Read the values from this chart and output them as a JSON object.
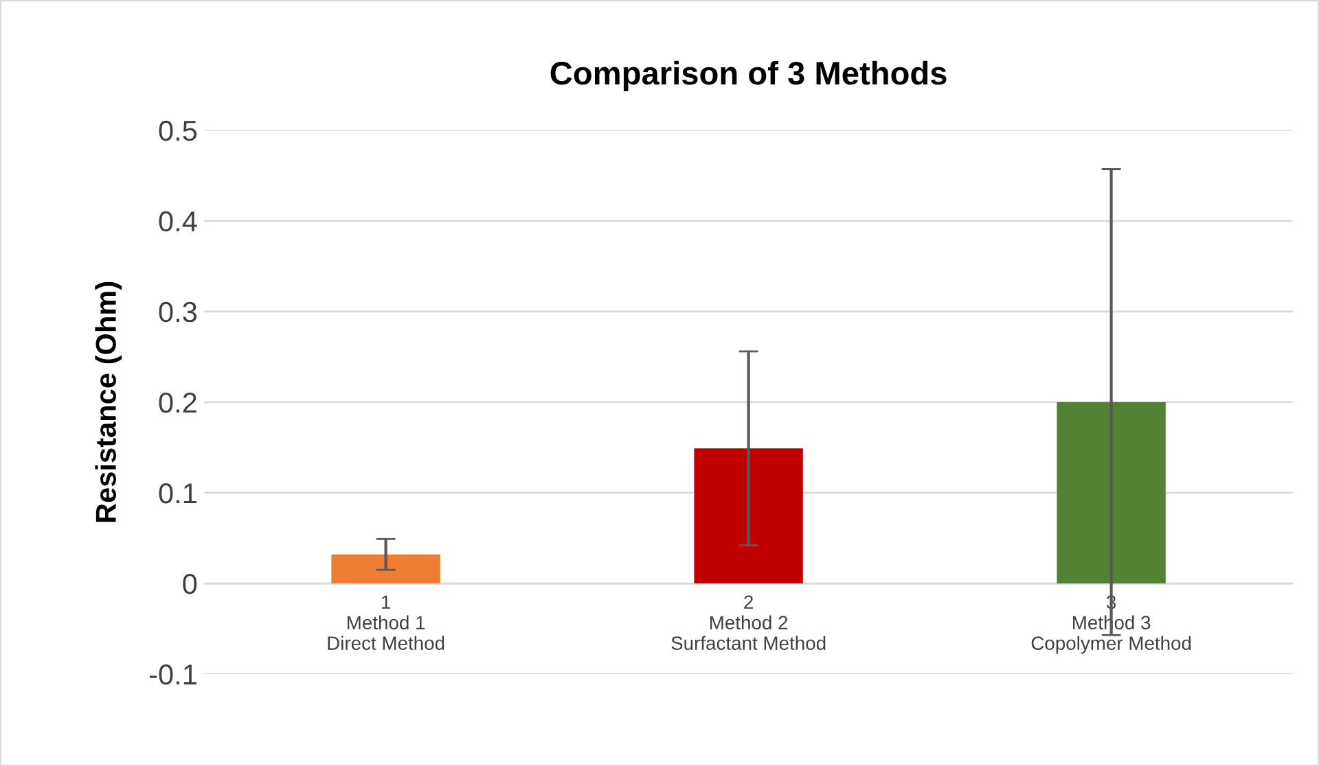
{
  "chart_data": {
    "type": "bar",
    "title": "Comparison of 3 Methods",
    "ylabel": "Resistance (Ohm)",
    "categories": [
      "1\nMethod 1\nDirect Method",
      "2\nMethod 2\nSurfactant Method",
      "3\nMethod 3\nCopolymer Method"
    ],
    "values": [
      0.032,
      0.149,
      0.2
    ],
    "colors": [
      "#ed7d31",
      "#c00000",
      "#548235"
    ],
    "errors": [
      0.017,
      0.107,
      0.257
    ],
    "ylim": [
      -0.1,
      0.5
    ],
    "yticks": [
      -0.1,
      0,
      0.1,
      0.2,
      0.3,
      0.4,
      0.5
    ],
    "grid": "y"
  }
}
